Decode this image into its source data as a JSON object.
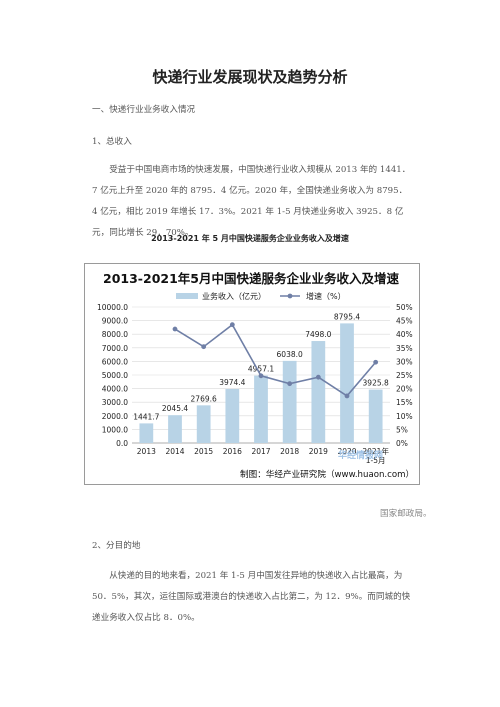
{
  "doc": {
    "title": "快递行业发展现状及趋势分析",
    "section1": "一、快递行业业务收入情况",
    "sub1": "1、总收入",
    "para1": "受益于中国电商市场的快速发展，中国快递行业收入规模从 2013 年的 1441．7 亿元上升至 2020 年的 8795．4 亿元。2020 年，全国快递业务收入为 8795．4 亿元，相比 2019 年增长 17．3%。2021 年 1-5 月快递业务收入 3925．8 亿元，同比增长 29．70%。",
    "figure_caption": "2013-2021 年 5 月中国快递服务企业业务收入及增速",
    "source": "国家邮政局。",
    "sub2": "2、分目的地",
    "para2": "从快递的目的地来看，2021 年 1-5 月中国发往异地的快递收入占比最高，为 50．5%，其次，运往国际或港澳台的快递收入占比第二，为 12．9%。而同城的快递业务收入仅占比 8．0%。"
  },
  "chart_data": {
    "type": "bar",
    "title": "2013-2021年5月中国快递服务企业业务收入及增速",
    "categories": [
      "2013",
      "2014",
      "2015",
      "2016",
      "2017",
      "2018",
      "2019",
      "2020",
      "2021年\n1-5月"
    ],
    "series": [
      {
        "name": "业务收入（亿元）",
        "type": "bar",
        "axis": "left",
        "values": [
          1441.7,
          2045.4,
          2769.6,
          3974.4,
          4957.1,
          6038.0,
          7498.0,
          8795.4,
          3925.8
        ],
        "labels": [
          "1441.7",
          "2045.4",
          "2769.6",
          "3974.4",
          "4957.1",
          "6038.0",
          "7498.0",
          "8795.4",
          "3925.8"
        ]
      },
      {
        "name": "增速（%）",
        "type": "line",
        "axis": "right",
        "values": [
          null,
          41.9,
          35.4,
          43.5,
          24.7,
          21.8,
          24.2,
          17.3,
          29.7
        ]
      }
    ],
    "ylim_left": [
      0,
      10000
    ],
    "yticks_left": [
      "0.0",
      "1000.0",
      "2000.0",
      "3000.0",
      "4000.0",
      "5000.0",
      "6000.0",
      "7000.0",
      "8000.0",
      "9000.0",
      "10000.0"
    ],
    "ylim_right": [
      0,
      50
    ],
    "yticks_right": [
      "0%",
      "5%",
      "10%",
      "15%",
      "20%",
      "25%",
      "30%",
      "35%",
      "40%",
      "45%",
      "50%"
    ],
    "legend_position": "top",
    "grid": true,
    "credit": "制图：华经产业研究院（www.huaon.com）",
    "watermark": "华经情报网",
    "bar_color": "#b8d3e6",
    "line_color": "#6f7fa6",
    "credit_color": "#111111"
  }
}
